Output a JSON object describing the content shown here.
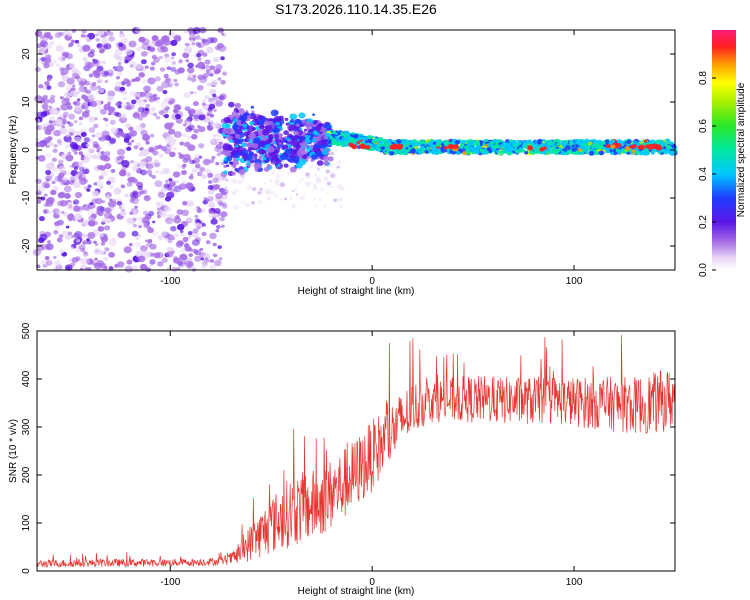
{
  "title": "S173.2026.110.14.35.E26",
  "chart_data": [
    {
      "type": "heatmap",
      "name": "spectrogram",
      "xlabel": "Height of straight line (km)",
      "ylabel": "Frequency (Hz)",
      "xlim": [
        -166,
        150
      ],
      "ylim": [
        -25,
        25
      ],
      "xticks": [
        -100,
        0,
        100
      ],
      "yticks": [
        -20,
        -10,
        0,
        10,
        20
      ],
      "colorbar": {
        "label": "Normalized spectral amplitude",
        "range": [
          0,
          1
        ],
        "ticks": [
          "0.0",
          "0.2",
          "0.4",
          "0.6",
          "0.8"
        ],
        "tick_values": [
          0,
          0.2,
          0.4,
          0.6,
          0.8
        ]
      },
      "regions": [
        {
          "x_range": [
            -166,
            -73
          ],
          "freq_range": [
            -25,
            25
          ],
          "level": "0.1-0.3",
          "description": "scattered noise"
        },
        {
          "x_range": [
            -73,
            -20
          ],
          "freq_range": [
            -7,
            8
          ],
          "level": "0.2-0.5"
        },
        {
          "x_range": [
            -20,
            150
          ],
          "freq": 0.5,
          "level": "0.4-1.0",
          "description": "narrow band near 0 Hz"
        }
      ]
    },
    {
      "type": "line",
      "name": "snr",
      "xlabel": "Height of straight line (km)",
      "ylabel": "SNR (10 * v/v)",
      "xlim": [
        -166,
        150
      ],
      "ylim": [
        0,
        500
      ],
      "xticks": [
        -100,
        0,
        100
      ],
      "yticks": [
        0,
        100,
        200,
        300,
        400,
        500
      ],
      "color": "#e8342f",
      "x": [
        -166,
        -150,
        -130,
        -110,
        -90,
        -75,
        -68,
        -60,
        -50,
        -40,
        -30,
        -20,
        -10,
        0,
        10,
        20,
        30,
        50,
        70,
        90,
        110,
        130,
        140,
        150
      ],
      "y": [
        15,
        16,
        17,
        17,
        18,
        20,
        28,
        60,
        95,
        125,
        135,
        160,
        195,
        240,
        290,
        340,
        355,
        358,
        355,
        355,
        350,
        345,
        350,
        360
      ],
      "noise_amplitude": [
        8,
        8,
        8,
        8,
        8,
        8,
        15,
        40,
        60,
        75,
        75,
        75,
        75,
        75,
        65,
        55,
        45,
        50,
        50,
        50,
        55,
        60,
        65,
        65
      ]
    }
  ]
}
